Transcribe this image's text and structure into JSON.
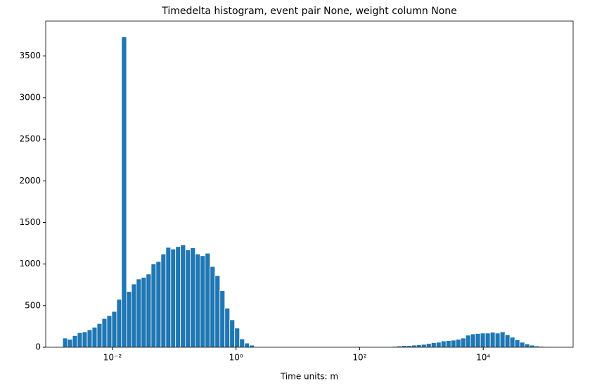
{
  "chart_data": {
    "type": "histogram",
    "title": "Timedelta histogram, event pair None, weight column None",
    "x_label": "Time units: m",
    "color": "#1f77b4",
    "x_log": true,
    "grid": false,
    "bins": [
      0.00156,
      0.00187,
      0.00225,
      0.0027,
      0.00325,
      0.0039,
      0.00468,
      0.00562,
      0.00675,
      0.00811,
      0.00974,
      0.0117,
      0.014,
      0.0169,
      0.0203,
      0.0243,
      0.0292,
      0.0351,
      0.0422,
      0.0506,
      0.0608,
      0.073,
      0.0877,
      0.105,
      0.126,
      0.152,
      0.182,
      0.219,
      0.263,
      0.316,
      0.38,
      0.456,
      0.548,
      0.658,
      0.79,
      0.949,
      1.14,
      1.37,
      1.64,
      1.97,
      2.37,
      2.85,
      3.42,
      4.11,
      4.93,
      5.93,
      7.12,
      8.55,
      10.27,
      12.33,
      14.81,
      17.78,
      21.36,
      25.65,
      30.81,
      37.0,
      44.44,
      53.38,
      64.11,
      76.99,
      92.47,
      111.1,
      133.4,
      160.2,
      192.4,
      231.1,
      277.5,
      333.3,
      400.4,
      480.8,
      577.5,
      693.4,
      833.0,
      1000,
      1201,
      1443,
      1733,
      2081,
      2500,
      3002,
      3606,
      4331,
      5202,
      6247,
      7503,
      9010,
      10822,
      12997,
      15611,
      18748,
      22518,
      27040,
      32480,
      39000,
      46850,
      56260,
      67580,
      81160,
      97480,
      117100,
      140600
    ],
    "values": [
      110,
      95,
      140,
      175,
      185,
      210,
      240,
      285,
      345,
      380,
      430,
      575,
      3730,
      670,
      760,
      820,
      840,
      880,
      1000,
      1030,
      1120,
      1200,
      1180,
      1210,
      1230,
      1170,
      1195,
      1120,
      1100,
      1130,
      970,
      860,
      680,
      470,
      330,
      230,
      100,
      50,
      25,
      0,
      0,
      0,
      0,
      0,
      0,
      0,
      0,
      0,
      0,
      0,
      0,
      0,
      0,
      0,
      0,
      0,
      0,
      0,
      0,
      0,
      0,
      0,
      0,
      0,
      0,
      0,
      0,
      10,
      15,
      20,
      20,
      25,
      30,
      35,
      45,
      55,
      60,
      75,
      80,
      85,
      95,
      110,
      145,
      160,
      165,
      170,
      170,
      180,
      170,
      185,
      150,
      120,
      90,
      60,
      40,
      25,
      15,
      10,
      5,
      3
    ],
    "xlim": [
      0.00083,
      285000
    ],
    "xticks": [
      {
        "value": 0.01,
        "label": "10⁻²"
      },
      {
        "value": 1,
        "label": "10⁰"
      },
      {
        "value": 100,
        "label": "10²"
      },
      {
        "value": 10000,
        "label": "10⁴"
      }
    ],
    "ylim": [
      0,
      3920
    ],
    "yticks": [
      0,
      500,
      1000,
      1500,
      2000,
      2500,
      3000,
      3500
    ]
  }
}
